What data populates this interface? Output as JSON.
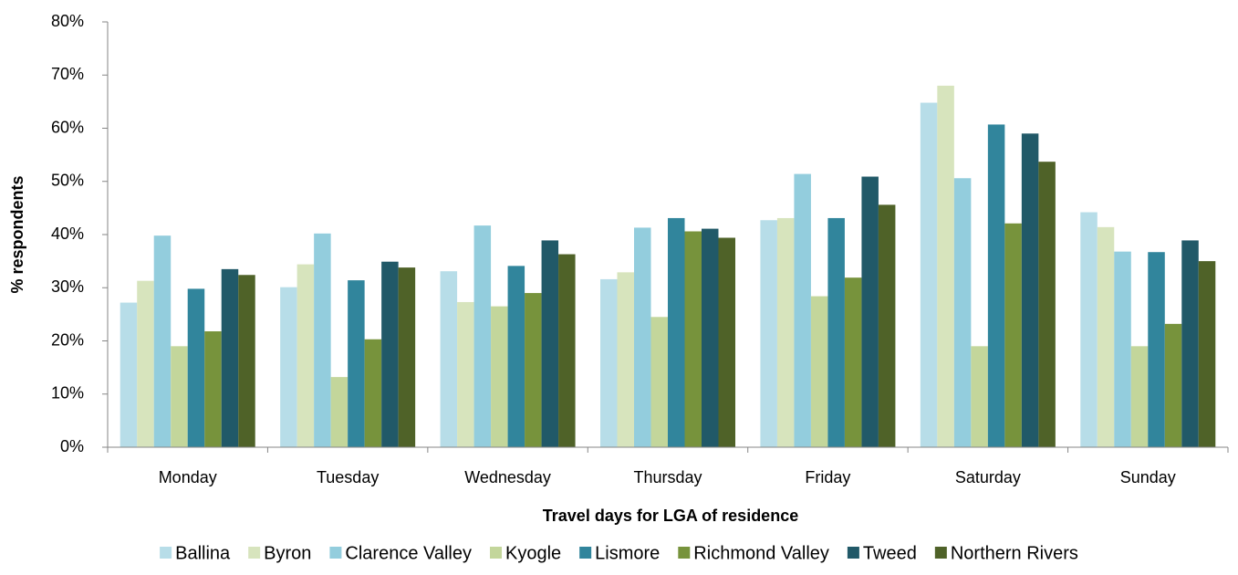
{
  "chart_data": {
    "type": "bar",
    "x_label": "Travel days for LGA of residence",
    "y_label": "% respondents",
    "categories": [
      "Monday",
      "Tuesday",
      "Wednesday",
      "Thursday",
      "Friday",
      "Saturday",
      "Sunday"
    ],
    "series": [
      {
        "name": "Ballina",
        "color": "#b7dde8",
        "values": [
          27.2,
          30.1,
          33.1,
          31.6,
          42.7,
          64.8,
          44.2
        ]
      },
      {
        "name": "Byron",
        "color": "#d7e4bd",
        "values": [
          31.3,
          34.4,
          27.3,
          32.9,
          43.1,
          68.0,
          41.4
        ]
      },
      {
        "name": "Clarence Valley",
        "color": "#93cddd",
        "values": [
          39.8,
          40.2,
          41.7,
          41.3,
          51.4,
          50.6,
          36.8
        ]
      },
      {
        "name": "Kyogle",
        "color": "#c3d69b",
        "values": [
          19.0,
          13.2,
          26.5,
          24.5,
          28.4,
          19.0,
          19.0
        ]
      },
      {
        "name": "Lismore",
        "color": "#31859c",
        "values": [
          29.8,
          31.4,
          34.1,
          43.1,
          43.1,
          60.7,
          36.7
        ]
      },
      {
        "name": "Richmond Valley",
        "color": "#77933c",
        "values": [
          21.8,
          20.3,
          29.0,
          40.6,
          31.9,
          42.1,
          23.2
        ]
      },
      {
        "name": "Tweed",
        "color": "#215968",
        "values": [
          33.5,
          34.9,
          38.9,
          41.1,
          50.9,
          59.0,
          38.9
        ]
      },
      {
        "name": "Northern Rivers",
        "color": "#4f6228",
        "values": [
          32.4,
          33.8,
          36.3,
          39.4,
          45.6,
          53.7,
          35.0
        ]
      }
    ],
    "ylim": [
      0,
      80
    ],
    "yticks": [
      {
        "value": 0,
        "label": "0%"
      },
      {
        "value": 10,
        "label": "10%"
      },
      {
        "value": 20,
        "label": "20%"
      },
      {
        "value": 30,
        "label": "30%"
      },
      {
        "value": 40,
        "label": "40%"
      },
      {
        "value": 50,
        "label": "50%"
      },
      {
        "value": 60,
        "label": "60%"
      },
      {
        "value": 70,
        "label": "70%"
      },
      {
        "value": 80,
        "label": "80%"
      }
    ],
    "grid": false,
    "legend": "bottom"
  }
}
